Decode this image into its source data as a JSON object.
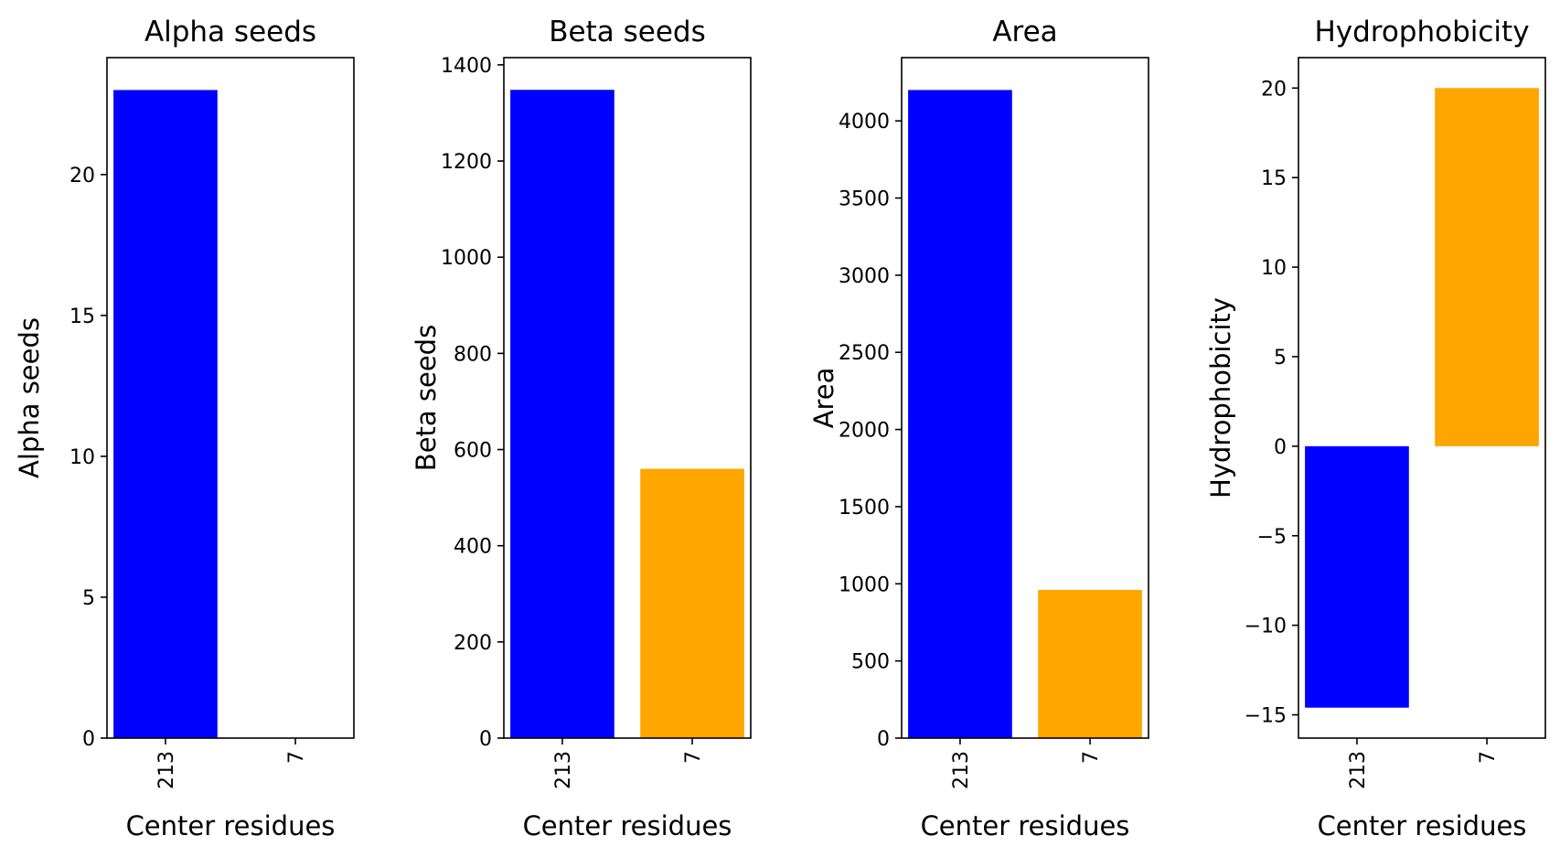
{
  "figure": {
    "colors": {
      "213": "#0000ff",
      "7": "#ffa500"
    }
  },
  "chart_data": [
    {
      "type": "bar",
      "title": "Alpha seeds",
      "xlabel": "Center residues",
      "ylabel": "Alpha seeds",
      "categories": [
        "213",
        "7"
      ],
      "values": [
        23,
        0
      ],
      "ylim": [
        0,
        24.15
      ],
      "yticks": [
        0,
        5,
        10,
        15,
        20
      ],
      "ytick_labels": [
        "0",
        "5",
        "10",
        "15",
        "20"
      ],
      "grid": false,
      "legend": false
    },
    {
      "type": "bar",
      "title": "Beta seeds",
      "xlabel": "Center residues",
      "ylabel": "Beta seeds",
      "categories": [
        "213",
        "7"
      ],
      "values": [
        1348,
        560
      ],
      "ylim": [
        0,
        1415
      ],
      "yticks": [
        0,
        200,
        400,
        600,
        800,
        1000,
        1200,
        1400
      ],
      "ytick_labels": [
        "0",
        "200",
        "400",
        "600",
        "800",
        "1000",
        "1200",
        "1400"
      ],
      "grid": false,
      "legend": false
    },
    {
      "type": "bar",
      "title": "Area",
      "xlabel": "Center residues",
      "ylabel": "Area",
      "categories": [
        "213",
        "7"
      ],
      "values": [
        4200,
        960
      ],
      "ylim": [
        0,
        4410
      ],
      "yticks": [
        0,
        500,
        1000,
        1500,
        2000,
        2500,
        3000,
        3500,
        4000
      ],
      "ytick_labels": [
        "0",
        "500",
        "1000",
        "1500",
        "2000",
        "2500",
        "3000",
        "3500",
        "4000"
      ],
      "grid": false,
      "legend": false
    },
    {
      "type": "bar",
      "title": "Hydrophobicity",
      "xlabel": "Center residues",
      "ylabel": "Hydrophobicity",
      "categories": [
        "213",
        "7"
      ],
      "values": [
        -14.6,
        20
      ],
      "ylim": [
        -16.3,
        21.7
      ],
      "yticks": [
        -15,
        -10,
        -5,
        0,
        5,
        10,
        15,
        20
      ],
      "ytick_labels": [
        "−15",
        "−10",
        "−5",
        "0",
        "5",
        "10",
        "15",
        "20"
      ],
      "grid": false,
      "legend": false
    }
  ]
}
